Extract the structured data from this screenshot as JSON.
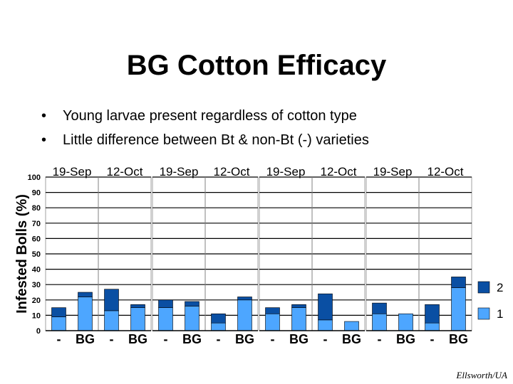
{
  "slide": {
    "title": "BG Cotton Efficacy",
    "bullets": [
      "Young larvae present regardless of cotton type",
      "Little difference between Bt & non-Bt (-) varieties"
    ],
    "credit": "Ellsworth/UA"
  },
  "chart_data": {
    "type": "bar",
    "stacked": true,
    "ylabel": "Infested Bolls (%)",
    "ylim": [
      0,
      100
    ],
    "yticks": [
      0,
      10,
      20,
      30,
      40,
      50,
      60,
      70,
      80,
      90,
      100
    ],
    "grid": true,
    "legend_position": "right",
    "series": [
      {
        "name": "1",
        "color": "#4da6ff"
      },
      {
        "name": "2",
        "color": "#0a4fa3"
      }
    ],
    "panels": [
      {
        "dates": [
          "19-Sep",
          "12-Oct"
        ],
        "bars": [
          {
            "label": "-",
            "series1": 9,
            "series2": 6
          },
          {
            "label": "BG",
            "series1": 22,
            "series2": 3
          },
          {
            "label": "-",
            "series1": 13,
            "series2": 14
          },
          {
            "label": "BG",
            "series1": 15,
            "series2": 2
          }
        ]
      },
      {
        "dates": [
          "19-Sep",
          "12-Oct"
        ],
        "bars": [
          {
            "label": "-",
            "series1": 15,
            "series2": 5
          },
          {
            "label": "BG",
            "series1": 16,
            "series2": 3
          },
          {
            "label": "-",
            "series1": 5,
            "series2": 6
          },
          {
            "label": "BG",
            "series1": 20,
            "series2": 2
          }
        ]
      },
      {
        "dates": [
          "19-Sep",
          "12-Oct"
        ],
        "bars": [
          {
            "label": "-",
            "series1": 11,
            "series2": 4
          },
          {
            "label": "BG",
            "series1": 15,
            "series2": 2
          },
          {
            "label": "-",
            "series1": 7,
            "series2": 17
          },
          {
            "label": "BG",
            "series1": 6,
            "series2": 0
          }
        ]
      },
      {
        "dates": [
          "19-Sep",
          "12-Oct"
        ],
        "bars": [
          {
            "label": "-",
            "series1": 11,
            "series2": 7
          },
          {
            "label": "BG",
            "series1": 11,
            "series2": 0
          },
          {
            "label": "-",
            "series1": 5,
            "series2": 12
          },
          {
            "label": "BG",
            "series1": 28,
            "series2": 7
          }
        ]
      }
    ]
  }
}
